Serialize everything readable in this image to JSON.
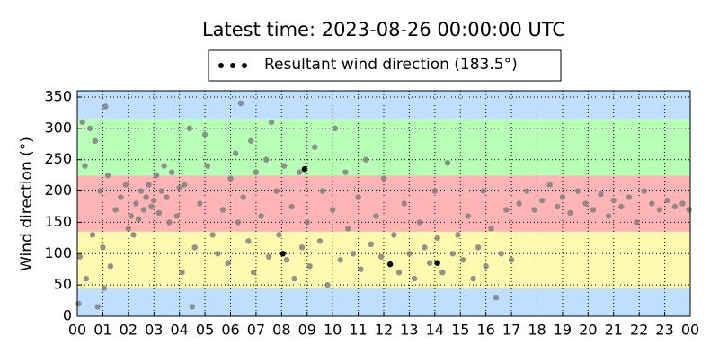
{
  "chart_data": {
    "type": "scatter",
    "title": "Latest time: 2023-08-26 00:00:00 UTC",
    "y_label": "Wind direction (°)",
    "xlim": [
      0,
      24
    ],
    "xticks": [
      {
        "value": 0,
        "label": "00"
      },
      {
        "value": 1,
        "label": "01"
      },
      {
        "value": 2,
        "label": "02"
      },
      {
        "value": 3,
        "label": "03"
      },
      {
        "value": 4,
        "label": "04"
      },
      {
        "value": 5,
        "label": "05"
      },
      {
        "value": 6,
        "label": "06"
      },
      {
        "value": 7,
        "label": "07"
      },
      {
        "value": 8,
        "label": "08"
      },
      {
        "value": 9,
        "label": "09"
      },
      {
        "value": 10,
        "label": "10"
      },
      {
        "value": 11,
        "label": "11"
      },
      {
        "value": 12,
        "label": "12"
      },
      {
        "value": 13,
        "label": "13"
      },
      {
        "value": 14,
        "label": "14"
      },
      {
        "value": 15,
        "label": "15"
      },
      {
        "value": 16,
        "label": "16"
      },
      {
        "value": 17,
        "label": "17"
      },
      {
        "value": 18,
        "label": "18"
      },
      {
        "value": 19,
        "label": "19"
      },
      {
        "value": 20,
        "label": "20"
      },
      {
        "value": 21,
        "label": "21"
      },
      {
        "value": 22,
        "label": "22"
      },
      {
        "value": 23,
        "label": "23"
      },
      {
        "value": 24,
        "label": "00"
      }
    ],
    "ylim": [
      0,
      360
    ],
    "yticks": [
      0,
      50,
      100,
      150,
      200,
      250,
      300,
      350
    ],
    "grid": true,
    "bands": [
      {
        "from": 0,
        "to": 45,
        "color": "#bfdfff"
      },
      {
        "from": 45,
        "to": 135,
        "color": "#fffab0"
      },
      {
        "from": 135,
        "to": 225,
        "color": "#ffb5b5"
      },
      {
        "from": 225,
        "to": 315,
        "color": "#b8ffb8"
      },
      {
        "from": 315,
        "to": 360,
        "color": "#bfdfff"
      }
    ],
    "series": [
      {
        "color": "#808080",
        "show_in_legend": false,
        "x": [
          0.05,
          0.1,
          0.2,
          0.3,
          0.35,
          0.5,
          0.6,
          0.7,
          0.8,
          0.9,
          1.0,
          1.05,
          1.1,
          1.2,
          1.3,
          1.5,
          1.7,
          1.9,
          2.0,
          2.1,
          2.2,
          2.3,
          2.4,
          2.5,
          2.6,
          2.7,
          2.8,
          2.9,
          3.0,
          3.1,
          3.2,
          3.3,
          3.4,
          3.5,
          3.6,
          3.7,
          3.9,
          4.0,
          4.1,
          4.2,
          4.4,
          4.5,
          4.6,
          4.8,
          5.0,
          5.1,
          5.3,
          5.5,
          5.7,
          5.9,
          6.0,
          6.2,
          6.3,
          6.4,
          6.5,
          6.7,
          6.8,
          6.9,
          7.0,
          7.2,
          7.4,
          7.5,
          7.6,
          7.8,
          7.9,
          8.1,
          8.2,
          8.4,
          8.5,
          8.7,
          8.8,
          9.0,
          9.1,
          9.3,
          9.5,
          9.6,
          9.8,
          10.0,
          10.1,
          10.3,
          10.5,
          10.6,
          10.8,
          11.0,
          11.1,
          11.3,
          11.5,
          11.7,
          11.9,
          12.0,
          12.4,
          12.6,
          12.8,
          13.0,
          13.2,
          13.4,
          13.6,
          13.8,
          14.0,
          14.1,
          14.3,
          14.5,
          14.7,
          14.9,
          15.1,
          15.3,
          15.5,
          15.7,
          15.9,
          16.0,
          16.2,
          16.4,
          16.6,
          16.8,
          17.0,
          17.3,
          17.6,
          17.9,
          18.2,
          18.5,
          18.8,
          19.0,
          19.3,
          19.6,
          19.9,
          20.2,
          20.5,
          20.8,
          21.0,
          21.3,
          21.6,
          21.9,
          22.2,
          22.5,
          22.8,
          23.1,
          23.4,
          23.7,
          23.95
        ],
        "values": [
          20,
          95,
          310,
          240,
          60,
          300,
          130,
          280,
          15,
          200,
          110,
          45,
          335,
          225,
          80,
          170,
          190,
          210,
          140,
          160,
          130,
          180,
          155,
          200,
          170,
          190,
          210,
          175,
          185,
          225,
          165,
          200,
          240,
          190,
          150,
          230,
          160,
          205,
          70,
          210,
          300,
          15,
          110,
          180,
          290,
          240,
          130,
          100,
          170,
          85,
          220,
          260,
          150,
          340,
          190,
          120,
          280,
          70,
          230,
          160,
          250,
          95,
          310,
          200,
          130,
          240,
          90,
          175,
          60,
          230,
          110,
          150,
          80,
          270,
          120,
          200,
          50,
          170,
          300,
          90,
          230,
          140,
          100,
          190,
          75,
          250,
          115,
          160,
          95,
          220,
          130,
          70,
          180,
          100,
          60,
          150,
          110,
          85,
          200,
          125,
          70,
          245,
          100,
          130,
          90,
          160,
          60,
          110,
          200,
          80,
          140,
          30,
          100,
          170,
          90,
          180,
          200,
          170,
          185,
          210,
          175,
          190,
          165,
          200,
          180,
          170,
          195,
          160,
          185,
          175,
          190,
          150,
          200,
          180,
          170,
          185,
          175,
          180,
          170
        ]
      },
      {
        "name": "Resultant wind direction (183.5°)",
        "color": "#000000",
        "x": [
          8.05,
          8.9,
          12.25,
          14.1
        ],
        "values": [
          100,
          235,
          83,
          85
        ]
      }
    ]
  }
}
